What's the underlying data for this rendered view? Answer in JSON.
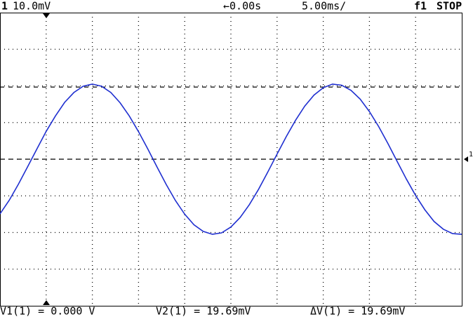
{
  "chart_data": {
    "type": "line",
    "header": {
      "channel": "1",
      "scale": "10.0mV",
      "delay": "←0.00s",
      "timebase": "5.00ms/",
      "trigger": "f1",
      "status": "STOP"
    },
    "footer": [
      "V1(1) = 0.000 V",
      "V2(1) = 19.69mV",
      "ΔV(1) = 19.69mV"
    ],
    "channel_marker": "1",
    "x": [
      -5,
      -4,
      -3,
      -2,
      -1,
      0,
      1,
      2,
      3,
      4,
      5,
      6,
      7,
      8,
      9,
      10,
      11,
      12,
      13,
      14,
      15,
      16,
      17,
      18,
      19,
      20,
      21,
      22,
      23,
      24,
      25,
      26,
      27,
      28,
      29,
      30,
      31,
      32,
      33,
      34,
      35,
      36,
      37,
      38,
      39,
      40,
      41,
      42,
      43,
      44,
      45
    ],
    "series": [
      {
        "color": "#1f2fd0",
        "values": [
          -14.9,
          -11.2,
          -6.8,
          -2.0,
          2.8,
          7.6,
          11.8,
          15.5,
          18.2,
          19.9,
          20.5,
          19.9,
          18.2,
          15.4,
          11.8,
          7.5,
          2.8,
          -2.1,
          -6.9,
          -11.3,
          -15.0,
          -17.9,
          -19.7,
          -20.5,
          -20.1,
          -18.5,
          -15.9,
          -12.4,
          -8.2,
          -3.5,
          1.4,
          6.2,
          10.6,
          14.5,
          17.5,
          19.5,
          20.5,
          20.2,
          18.8,
          16.4,
          13.0,
          8.9,
          4.3,
          -0.6,
          -5.4,
          -9.9,
          -13.8,
          -17.0,
          -19.1,
          -20.3,
          -20.5
        ]
      }
    ],
    "cursors": [
      0,
      19.69
    ],
    "xlim": [
      -5,
      45
    ],
    "ylim": [
      -40,
      40
    ],
    "xticks": [
      0,
      5,
      10,
      15,
      20,
      25,
      30,
      35,
      40
    ],
    "yticks": [
      -30,
      -20,
      -10,
      0,
      10,
      20,
      30
    ],
    "grid": true
  }
}
